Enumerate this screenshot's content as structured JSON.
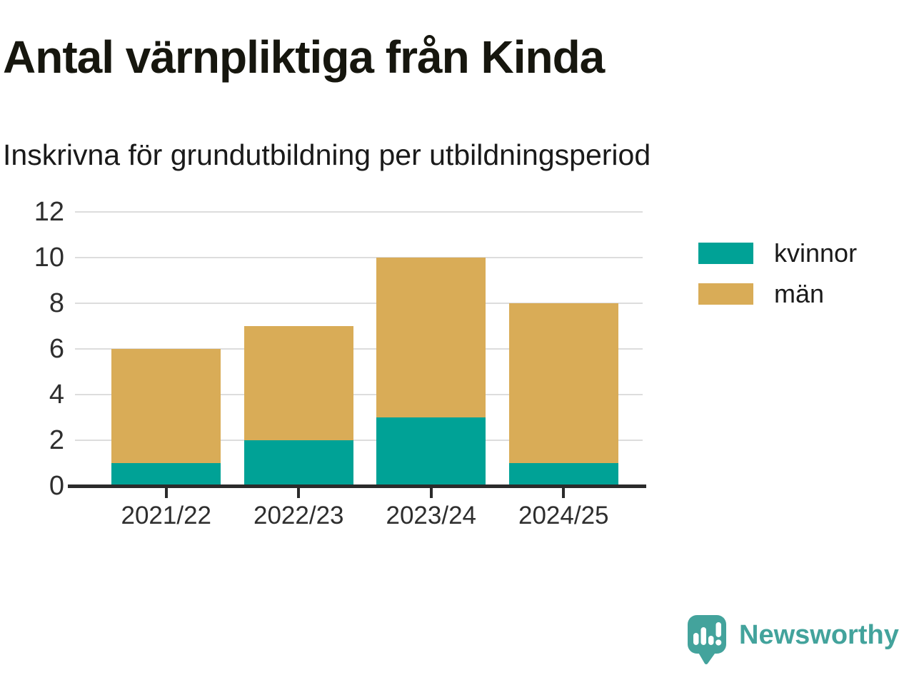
{
  "chart_data": {
    "type": "bar",
    "stacked": true,
    "title": "Antal värnpliktiga från Kinda",
    "subtitle": "Inskrivna för grundutbildning per utbildningsperiod",
    "categories": [
      "2021/22",
      "2022/23",
      "2023/24",
      "2024/25"
    ],
    "series": [
      {
        "name": "kvinnor",
        "color": "#00a296",
        "values": [
          1,
          2,
          3,
          1
        ]
      },
      {
        "name": "män",
        "color": "#d9ac57",
        "values": [
          5,
          5,
          7,
          7
        ]
      }
    ],
    "stack_totals": [
      6,
      7,
      10,
      8
    ],
    "xlabel": "",
    "ylabel": "",
    "ylim": [
      0,
      12
    ],
    "yticks": [
      0,
      2,
      4,
      6,
      8,
      10,
      12
    ],
    "grid": true,
    "legend_position": "right"
  },
  "footer": {
    "brand": "Newsworthy"
  },
  "colors": {
    "axis": "#2b2b2b",
    "gridline": "#dddddd",
    "tick_text": "#2e2e2e",
    "title_text": "#16160e",
    "brand_teal": "#43a39c",
    "logo_glyph": "#ffffff"
  }
}
